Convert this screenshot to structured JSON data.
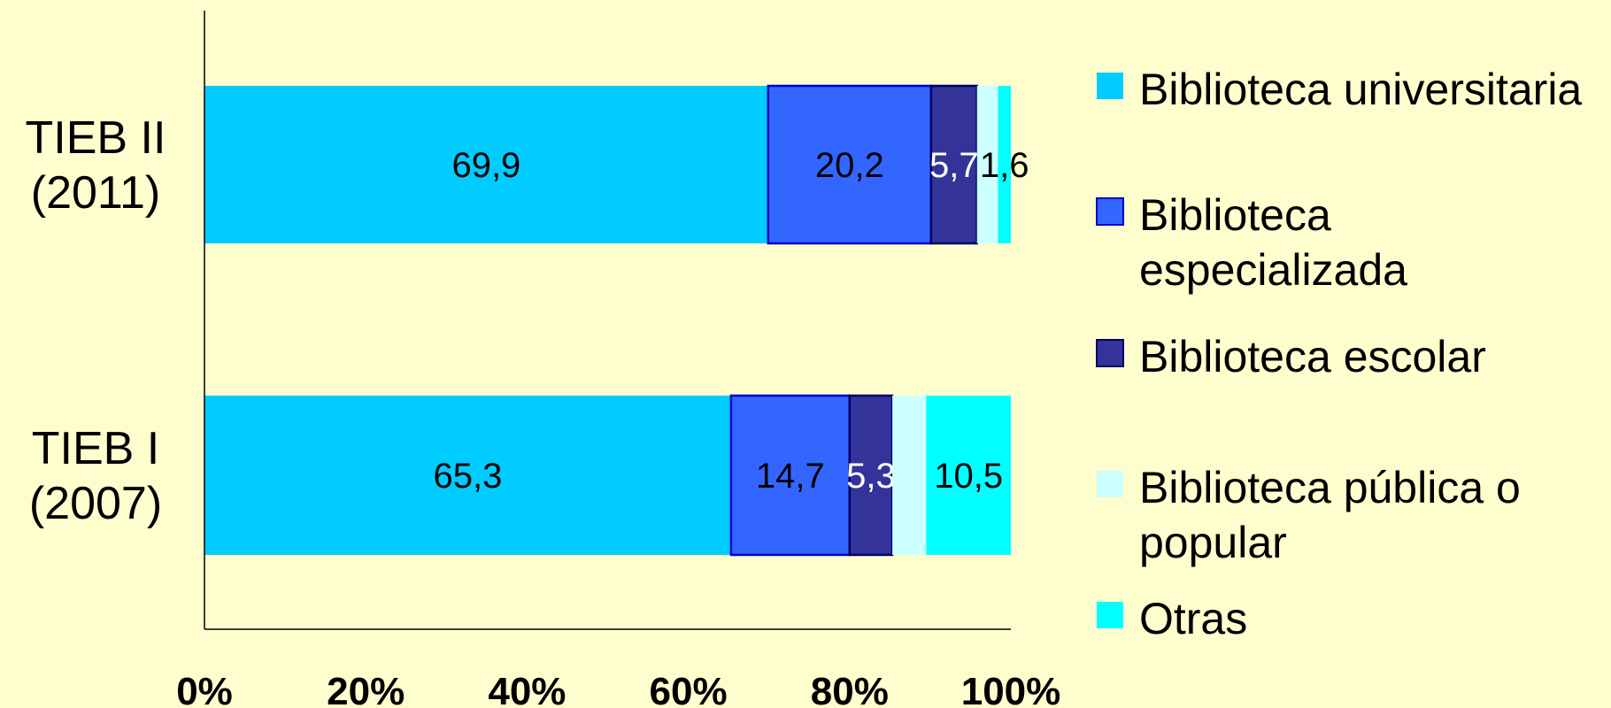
{
  "chart_data": {
    "type": "bar",
    "orientation": "horizontal",
    "stacked": "percent",
    "categories": [
      [
        "TIEB II",
        "(2011)"
      ],
      [
        "TIEB I",
        "(2007)"
      ]
    ],
    "series": [
      {
        "name": "Biblioteca universitaria",
        "values": [
          69.9,
          65.3
        ],
        "labels": [
          "69,9",
          "65,3"
        ],
        "color": "#00ccff"
      },
      {
        "name": "Biblioteca especializada",
        "values": [
          20.2,
          14.7
        ],
        "labels": [
          "20,2",
          "14,7"
        ],
        "color": "#3366ff"
      },
      {
        "name": "Biblioteca escolar",
        "values": [
          5.7,
          5.3
        ],
        "labels": [
          "5,7",
          "5,3"
        ],
        "color": "#333399"
      },
      {
        "name": "Biblioteca pública o popular",
        "values": [
          2.6,
          4.2
        ],
        "labels": [
          "",
          ""
        ],
        "color": "#ccffff"
      },
      {
        "name": "Otras",
        "values": [
          1.6,
          10.5
        ],
        "labels": [
          "1,6",
          "10,5"
        ],
        "color": "#00ffff"
      }
    ],
    "legend_lines": [
      [
        "Biblioteca universitaria"
      ],
      [
        "Biblioteca",
        "especializada"
      ],
      [
        "Biblioteca escolar"
      ],
      [
        "Biblioteca pública o",
        "popular"
      ],
      [
        "Otras"
      ]
    ],
    "x_ticks": [
      "0%",
      "20%",
      "40%",
      "60%",
      "80%",
      "100%"
    ],
    "xlim": [
      0,
      100
    ],
    "grid": false,
    "legend_position": "right",
    "background": "#fefdcd"
  }
}
